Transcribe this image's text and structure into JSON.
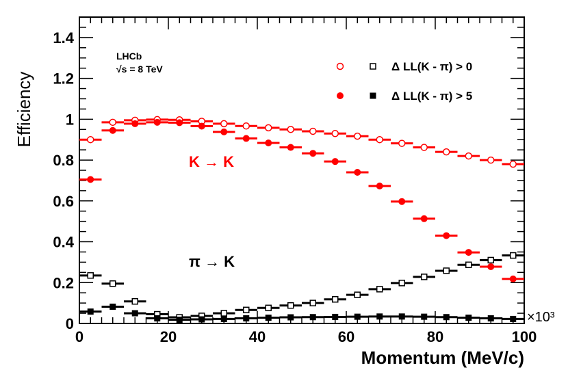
{
  "chart_data": {
    "type": "scatter",
    "title": "",
    "xlabel": "Momentum (MeV/c)",
    "ylabel": "Efficiency",
    "x_multiplier": "×10³",
    "xlim": [
      0,
      100
    ],
    "ylim": [
      0,
      1.5
    ],
    "x_ticks": [
      0,
      20,
      40,
      60,
      80,
      100
    ],
    "y_ticks": [
      {
        "v": 0,
        "label": "0"
      },
      {
        "v": 0.2,
        "label": "0.2"
      },
      {
        "v": 0.4,
        "label": "0.4"
      },
      {
        "v": 0.6,
        "label": "0.6"
      },
      {
        "v": 0.8,
        "label": "0.8"
      },
      {
        "v": 1.0,
        "label": "1"
      },
      {
        "v": 1.2,
        "label": "1.2"
      },
      {
        "v": 1.4,
        "label": "1.4"
      }
    ],
    "bin_half_width": 2.5,
    "x": [
      2.5,
      7.5,
      12.5,
      17.5,
      22.5,
      27.5,
      32.5,
      37.5,
      42.5,
      47.5,
      52.5,
      57.5,
      62.5,
      67.5,
      72.5,
      77.5,
      82.5,
      87.5,
      92.5,
      97.5
    ],
    "series": [
      {
        "name": "K→K ΔLL(K-π)>0",
        "color": "#ff0000",
        "marker": "open-circle",
        "values": [
          0.9,
          0.985,
          0.995,
          0.998,
          0.997,
          0.99,
          0.978,
          0.967,
          0.958,
          0.95,
          0.941,
          0.93,
          0.917,
          0.9,
          0.882,
          0.862,
          0.84,
          0.82,
          0.8,
          0.78
        ]
      },
      {
        "name": "K→K ΔLL(K-π)>5",
        "color": "#ff0000",
        "marker": "filled-circle",
        "values": [
          0.705,
          0.945,
          0.978,
          0.985,
          0.983,
          0.966,
          0.938,
          0.906,
          0.884,
          0.862,
          0.833,
          0.793,
          0.74,
          0.673,
          0.597,
          0.513,
          0.43,
          0.348,
          0.278,
          0.218
        ]
      },
      {
        "name": "π→K ΔLL(K-π)>0",
        "color": "#000000",
        "marker": "open-square",
        "values": [
          0.235,
          0.195,
          0.108,
          0.045,
          0.03,
          0.037,
          0.05,
          0.066,
          0.076,
          0.088,
          0.1,
          0.118,
          0.14,
          0.168,
          0.198,
          0.228,
          0.258,
          0.287,
          0.31,
          0.333
        ]
      },
      {
        "name": "π→K ΔLL(K-π)>5",
        "color": "#000000",
        "marker": "filled-square",
        "values": [
          0.058,
          0.082,
          0.05,
          0.025,
          0.018,
          0.02,
          0.022,
          0.025,
          0.028,
          0.03,
          0.031,
          0.032,
          0.033,
          0.034,
          0.034,
          0.033,
          0.031,
          0.028,
          0.025,
          0.022
        ]
      }
    ],
    "legend": [
      {
        "label": "Δ LL(K - π) > 0",
        "markers": [
          "open-circle",
          "open-square"
        ]
      },
      {
        "label": "Δ LL(K - π) > 5",
        "markers": [
          "filled-circle",
          "filled-square"
        ]
      }
    ],
    "annotations": {
      "experiment": "LHCb",
      "energy": "√s = 8 TeV",
      "kk_label": "K → K",
      "pik_label": "π → K"
    }
  }
}
